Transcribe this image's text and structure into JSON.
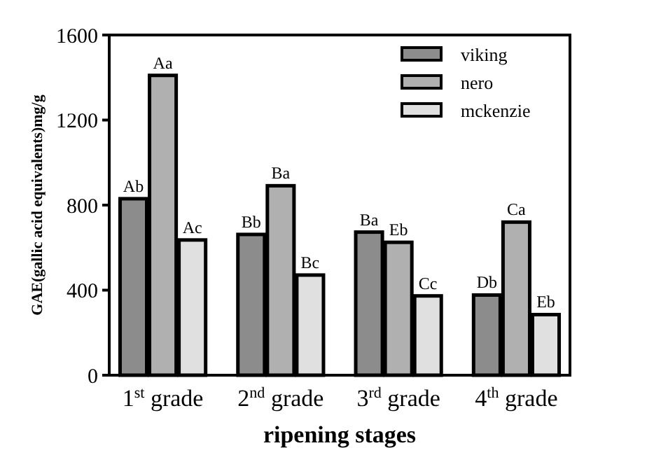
{
  "chart_data": {
    "type": "bar",
    "xlabel": "ripening stages",
    "ylabel": "GAE(gallic acid equivalents)mg/g",
    "categories": [
      "1$^{st}$ grade",
      "2$^{nd}$ grade",
      "3$^{rd}$ grade",
      "4$^{th}$ grade"
    ],
    "series": [
      {
        "name": "viking",
        "color": "#8c8c8c",
        "values": [
          830,
          662,
          673,
          377
        ],
        "value_labels": [
          "Ab",
          "Bb",
          "Ba",
          "Db"
        ]
      },
      {
        "name": "nero",
        "color": "#b0b0b0",
        "values": [
          1410,
          891,
          625,
          720
        ],
        "value_labels": [
          "Aa",
          "Ba",
          "Eb",
          "Ca"
        ]
      },
      {
        "name": "mckenzie",
        "color": "#e0e0e0",
        "values": [
          636,
          471,
          373,
          285
        ],
        "value_labels": [
          "Ac",
          "Bc",
          "Cc",
          "Eb"
        ]
      }
    ],
    "ylim": [
      0,
      1600
    ],
    "yticks": [
      0,
      400,
      800,
      1200,
      1600
    ],
    "grid": false,
    "legend": "top right"
  }
}
